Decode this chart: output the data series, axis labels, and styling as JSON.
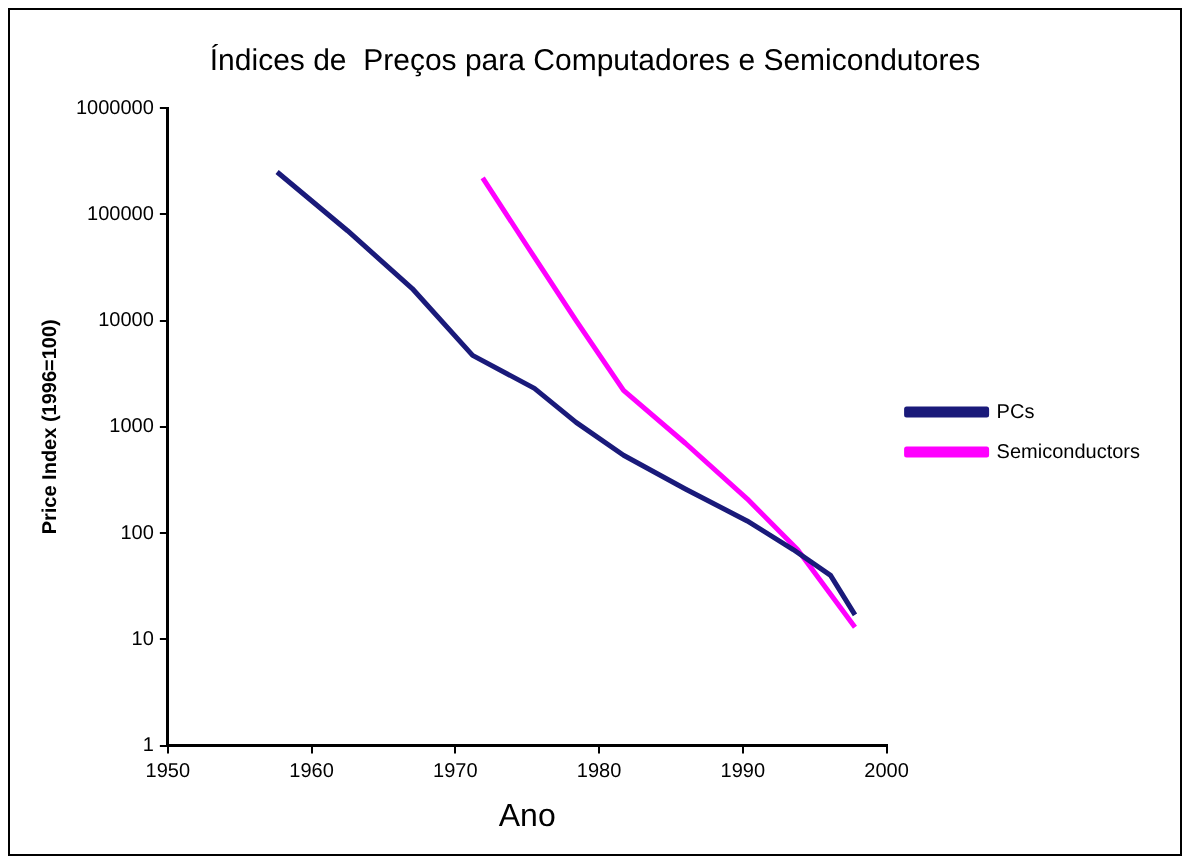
{
  "chart_data": {
    "type": "line",
    "title": "Índices de  Preços para Computadores e Semicondutores",
    "xlabel": "Ano",
    "ylabel": "Price Index (1996=100)",
    "log": true,
    "legend": "right",
    "grid": false,
    "xlim": [
      1950,
      2000
    ],
    "xticks": [
      1950,
      1960,
      1970,
      1980,
      1990,
      2000
    ],
    "ylim": [
      1,
      1000000
    ],
    "yticks": [
      1,
      10,
      100,
      1000,
      10000,
      100000,
      1000000
    ],
    "series": [
      {
        "name": "PCs",
        "color": "#1a1a7a",
        "x": [
          1957.6,
          1962.5,
          1967,
          1971.2,
          1975.5,
          1978.4,
          1981.7,
          1986,
          1990.3,
          1993.5,
          1996.1,
          1997.8
        ],
        "values": [
          250000,
          70000,
          20000,
          4700,
          2300,
          1100,
          540,
          260,
          130,
          70,
          40,
          17
        ]
      },
      {
        "name": "Semiconductors",
        "color": "#ff00ff",
        "x": [
          1971.9,
          1975,
          1978.4,
          1981.7,
          1986,
          1990.3,
          1993.8,
          1997.8
        ],
        "values": [
          220000,
          50000,
          10000,
          2200,
          700,
          210,
          70,
          13
        ]
      }
    ]
  }
}
